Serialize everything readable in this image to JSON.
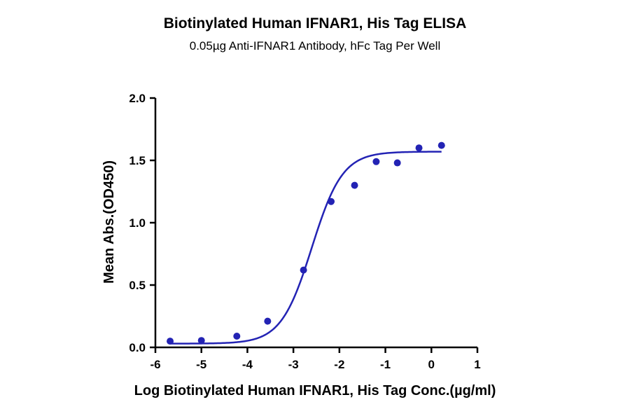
{
  "chart_data": {
    "type": "scatter",
    "title": "Biotinylated Human IFNAR1, His Tag ELISA",
    "subtitle": "0.05µg Anti-IFNAR1 Antibody, hFc Tag Per Well",
    "xlabel": "Log Biotinylated Human IFNAR1, His Tag Conc.(µg/ml)",
    "ylabel": "Mean Abs.(OD450)",
    "xlim": [
      -6,
      1
    ],
    "ylim": [
      0,
      2
    ],
    "x_ticks": [
      "-6",
      "-5",
      "-4",
      "-3",
      "-2",
      "-1",
      "0",
      "1"
    ],
    "y_ticks": [
      "0.0",
      "0.5",
      "1.0",
      "1.5",
      "2.0"
    ],
    "grid": false,
    "color": "#2323b4",
    "series": [
      {
        "points": [
          {
            "x": -5.68,
            "y": 0.05
          },
          {
            "x": -5.0,
            "y": 0.055
          },
          {
            "x": -4.23,
            "y": 0.09
          },
          {
            "x": -3.56,
            "y": 0.21
          },
          {
            "x": -2.78,
            "y": 0.62
          },
          {
            "x": -2.18,
            "y": 1.17
          },
          {
            "x": -1.67,
            "y": 1.3
          },
          {
            "x": -1.2,
            "y": 1.49
          },
          {
            "x": -0.74,
            "y": 1.48
          },
          {
            "x": -0.27,
            "y": 1.6
          },
          {
            "x": 0.22,
            "y": 1.62
          }
        ],
        "fit": {
          "model": "4PL",
          "bottom": 0.03,
          "top": 1.57,
          "logEC50": -2.6,
          "hill": 1.3,
          "x_range": [
            -5.68,
            0.22
          ]
        }
      }
    ]
  }
}
